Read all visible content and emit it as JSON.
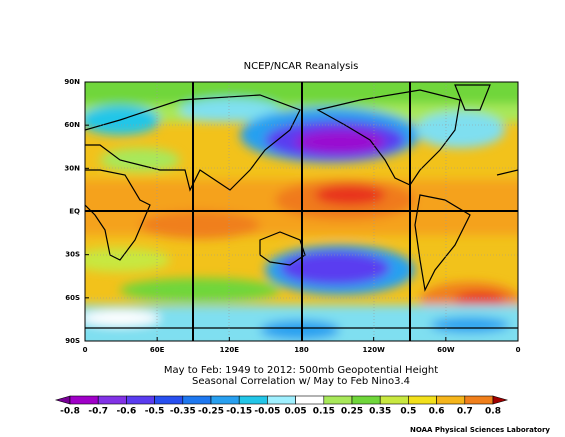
{
  "title": "NCEP/NCAR Reanalysis",
  "map": {
    "lat_labels": [
      "90N",
      "60N",
      "30N",
      "EQ",
      "30S",
      "60S",
      "90S"
    ],
    "lon_labels": [
      "0",
      "60E",
      "120E",
      "180",
      "120W",
      "60W",
      "0"
    ]
  },
  "caption": [
    "May to Feb: 1949 to 2012: 500mb Geopotential Height",
    "Seasonal Correlation w/ May to Feb Nino3.4"
  ],
  "colorbar": {
    "labels": [
      "-0.8",
      "-0.7",
      "-0.6",
      "-0.5",
      "-0.35",
      "-0.25",
      "-0.15",
      "-0.05",
      "0.05",
      "0.15",
      "0.25",
      "0.35",
      "0.5",
      "0.6",
      "0.7",
      "0.8"
    ]
  },
  "credit": "NOAA Physical Sciences Laboratory"
}
